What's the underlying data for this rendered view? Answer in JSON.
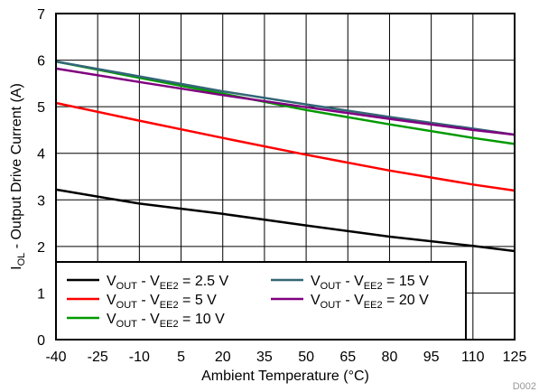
{
  "chart_data": {
    "type": "line",
    "xlabel": "Ambient Temperature (°C)",
    "ylabel": "I_OL - Output Drive Current (A)",
    "ylabel_parts": {
      "main": "I",
      "sub": "OL",
      "rest": " - Output Drive Current (A)"
    },
    "xlim": [
      -40,
      125
    ],
    "ylim": [
      0,
      7
    ],
    "x_ticks": [
      -40,
      -25,
      -10,
      5,
      20,
      35,
      50,
      65,
      80,
      95,
      110,
      125
    ],
    "y_ticks": [
      0,
      1,
      2,
      3,
      4,
      5,
      6,
      7
    ],
    "grid": true,
    "legend_position": "bottom-left",
    "figure_code": "D002",
    "series": [
      {
        "name": "VOUT - VEE2 = 2.5 V",
        "color": "#000000",
        "legend_parts": {
          "v1": "V",
          "s1": "OUT",
          "mid": " - V",
          "s2": "EE2",
          "tail": " = 2.5 V"
        },
        "x": [
          -40,
          -10,
          20,
          50,
          80,
          110,
          125
        ],
        "y": [
          3.22,
          2.92,
          2.7,
          2.45,
          2.21,
          2.01,
          1.9
        ]
      },
      {
        "name": "VOUT - VEE2 = 5 V",
        "color": "#ff0000",
        "legend_parts": {
          "v1": "V",
          "s1": "OUT",
          "mid": " - V",
          "s2": "EE2",
          "tail": " = 5 V"
        },
        "x": [
          -40,
          -10,
          20,
          50,
          80,
          110,
          125
        ],
        "y": [
          5.08,
          4.7,
          4.33,
          3.97,
          3.63,
          3.33,
          3.2
        ]
      },
      {
        "name": "VOUT - VEE2 = 10 V",
        "color": "#009900",
        "legend_parts": {
          "v1": "V",
          "s1": "OUT",
          "mid": " - V",
          "s2": "EE2",
          "tail": " = 10 V"
        },
        "x": [
          -40,
          -10,
          20,
          50,
          80,
          110,
          125
        ],
        "y": [
          5.97,
          5.62,
          5.28,
          4.93,
          4.62,
          4.33,
          4.2
        ]
      },
      {
        "name": "VOUT - VEE2 = 15 V",
        "color": "#336677",
        "legend_parts": {
          "v1": "V",
          "s1": "OUT",
          "mid": " - V",
          "s2": "EE2",
          "tail": " = 15 V"
        },
        "x": [
          -40,
          -10,
          20,
          50,
          80,
          110,
          125
        ],
        "y": [
          5.97,
          5.65,
          5.33,
          5.05,
          4.78,
          4.53,
          4.4
        ]
      },
      {
        "name": "VOUT - VEE2 = 20 V",
        "color": "#800080",
        "legend_parts": {
          "v1": "V",
          "s1": "OUT",
          "mid": " - V",
          "s2": "EE2",
          "tail": " = 20 V"
        },
        "x": [
          -40,
          -10,
          20,
          50,
          80,
          110,
          125
        ],
        "y": [
          5.82,
          5.53,
          5.25,
          4.99,
          4.74,
          4.5,
          4.4
        ]
      }
    ]
  }
}
